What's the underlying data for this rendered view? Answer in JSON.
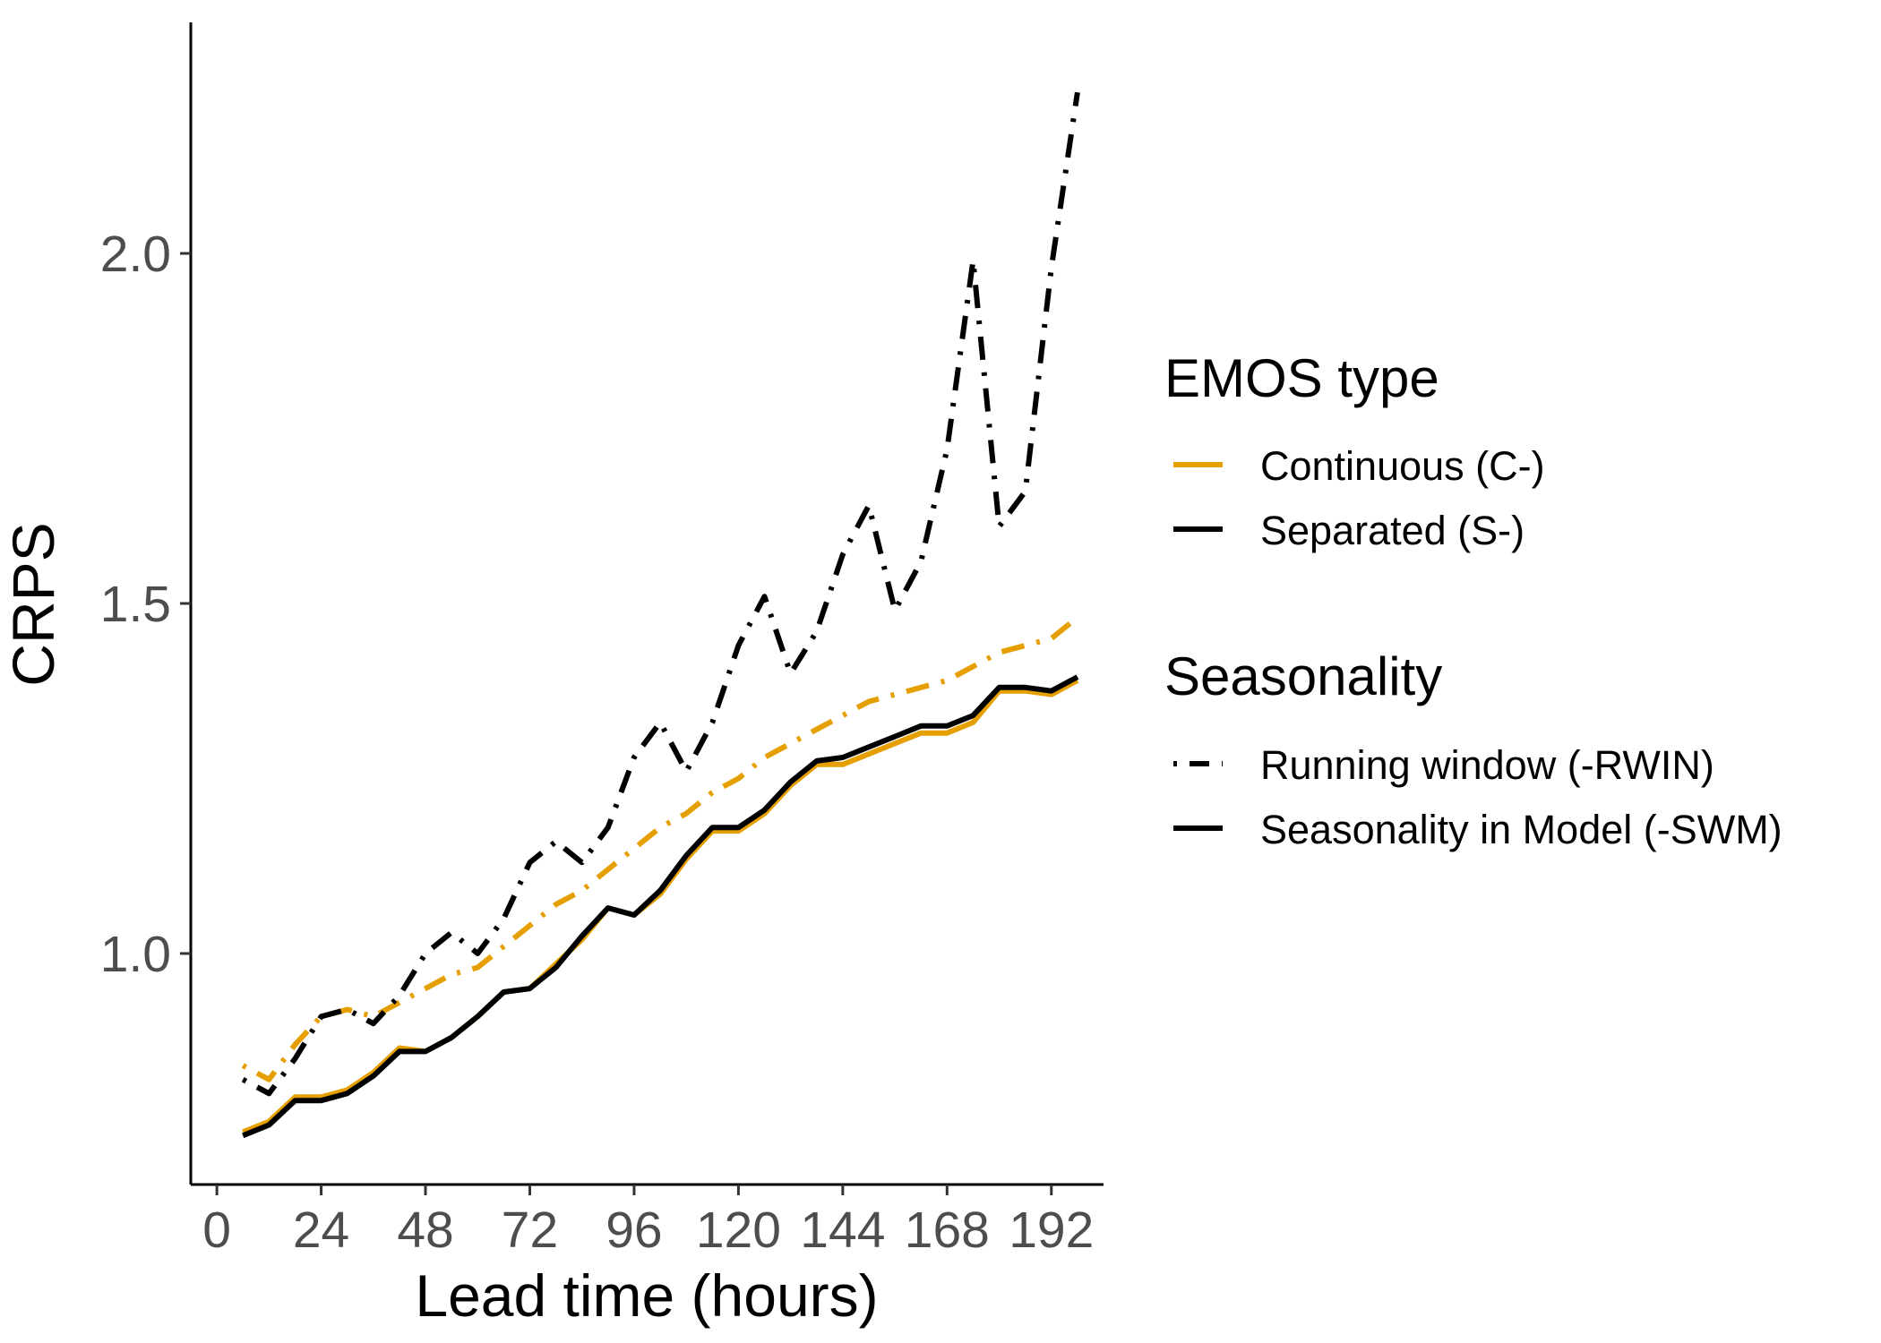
{
  "chart_data": {
    "type": "line",
    "xlabel": "Lead time (hours)",
    "ylabel": "CRPS",
    "xlim": [
      -6,
      204
    ],
    "ylim": [
      0.67,
      2.33
    ],
    "xticks": [
      0,
      24,
      48,
      72,
      96,
      120,
      144,
      168,
      192
    ],
    "xtick_labels": [
      "0",
      "24",
      "48",
      "72",
      "96",
      "120",
      "144",
      "168",
      "192"
    ],
    "yticks": [
      1.0,
      1.5,
      2.0
    ],
    "ytick_labels": [
      "1.0",
      "1.5",
      "2.0"
    ],
    "grid": false,
    "legend_position": "right",
    "x": [
      6,
      12,
      18,
      24,
      30,
      36,
      42,
      48,
      54,
      60,
      66,
      72,
      78,
      84,
      90,
      96,
      102,
      108,
      114,
      120,
      126,
      132,
      138,
      144,
      150,
      156,
      162,
      168,
      174,
      180,
      186,
      192,
      198
    ],
    "legends": [
      {
        "title": "EMOS type",
        "entries": [
          {
            "label": "Continuous (C-)",
            "color": "#E69F00",
            "dash": "solid"
          },
          {
            "label": "Separated (S-)",
            "color": "#000000",
            "dash": "solid"
          }
        ]
      },
      {
        "title": "Seasonality",
        "entries": [
          {
            "label": "Running window (-RWIN)",
            "color": "#000000",
            "dash": "dotdash"
          },
          {
            "label": "Seasonality in Model (-SWM)",
            "color": "#000000",
            "dash": "solid"
          }
        ]
      }
    ],
    "series": [
      {
        "emos": "Continuous (C-)",
        "seasonality": "Running window (-RWIN)",
        "color": "#E69F00",
        "dash": "dotdash",
        "values": [
          0.84,
          0.82,
          0.87,
          0.91,
          0.92,
          0.91,
          0.93,
          0.95,
          0.97,
          0.98,
          1.01,
          1.04,
          1.07,
          1.09,
          1.12,
          1.15,
          1.18,
          1.2,
          1.23,
          1.25,
          1.28,
          1.3,
          1.32,
          1.34,
          1.36,
          1.37,
          1.38,
          1.39,
          1.41,
          1.43,
          1.44,
          1.45,
          1.48
        ]
      },
      {
        "emos": "Separated (S-)",
        "seasonality": "Running window (-RWIN)",
        "color": "#000000",
        "dash": "dotdash",
        "values": [
          0.82,
          0.8,
          0.85,
          0.91,
          0.92,
          0.9,
          0.94,
          1.0,
          1.03,
          1.0,
          1.05,
          1.13,
          1.16,
          1.13,
          1.18,
          1.28,
          1.33,
          1.26,
          1.33,
          1.44,
          1.51,
          1.4,
          1.46,
          1.57,
          1.64,
          1.49,
          1.56,
          1.72,
          1.99,
          1.61,
          1.66,
          1.98,
          2.23
        ]
      },
      {
        "emos": "Continuous (C-)",
        "seasonality": "Seasonality in Model (-SWM)",
        "color": "#E69F00",
        "dash": "solid",
        "values": [
          0.745,
          0.76,
          0.795,
          0.795,
          0.805,
          0.83,
          0.865,
          0.86,
          0.88,
          0.91,
          0.945,
          0.95,
          0.985,
          1.02,
          1.065,
          1.055,
          1.085,
          1.135,
          1.175,
          1.175,
          1.2,
          1.24,
          1.27,
          1.27,
          1.285,
          1.3,
          1.315,
          1.315,
          1.33,
          1.375,
          1.375,
          1.37,
          1.39
        ]
      },
      {
        "emos": "Separated (S-)",
        "seasonality": "Seasonality in Model (-SWM)",
        "color": "#000000",
        "dash": "solid",
        "values": [
          0.74,
          0.755,
          0.79,
          0.79,
          0.8,
          0.825,
          0.86,
          0.86,
          0.88,
          0.91,
          0.945,
          0.95,
          0.98,
          1.025,
          1.065,
          1.055,
          1.09,
          1.14,
          1.18,
          1.18,
          1.205,
          1.245,
          1.275,
          1.28,
          1.295,
          1.31,
          1.325,
          1.325,
          1.34,
          1.38,
          1.38,
          1.375,
          1.395
        ]
      }
    ]
  }
}
